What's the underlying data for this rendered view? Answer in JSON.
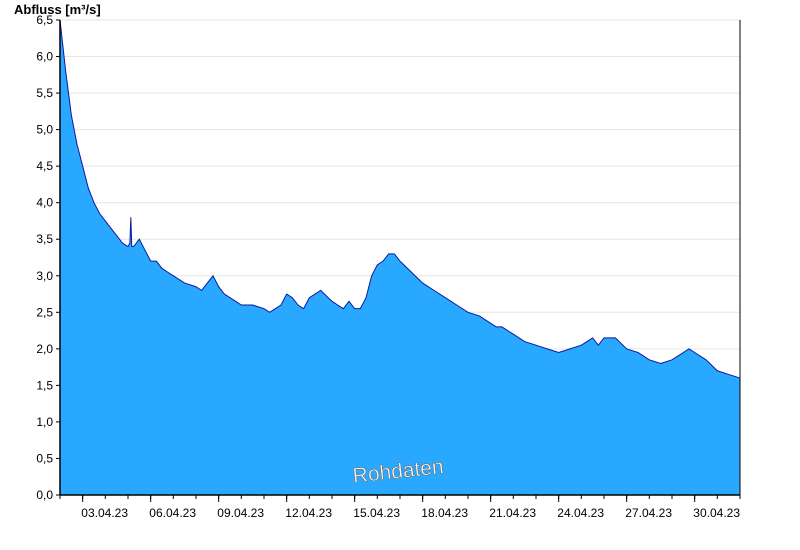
{
  "chart_data": {
    "type": "area",
    "title": "",
    "xlabel": "",
    "ylabel": "Abfluss [m³/s]",
    "watermark": "Rohdaten",
    "x_start": "2023-04-02",
    "x_end": "2023-05-02",
    "ylim": [
      0,
      6.5
    ],
    "yticks": [
      0,
      0.5,
      1.0,
      1.5,
      2.0,
      2.5,
      3.0,
      3.5,
      4.0,
      4.5,
      5.0,
      5.5,
      6.0,
      6.5
    ],
    "ytick_labels": [
      "0,0",
      "0,5",
      "1,0",
      "1,5",
      "2,0",
      "2,5",
      "3,0",
      "3,5",
      "4,0",
      "4,5",
      "5,0",
      "5,5",
      "6,0",
      "6,5"
    ],
    "xtick_dates": [
      "2023-04-03",
      "2023-04-06",
      "2023-04-09",
      "2023-04-12",
      "2023-04-15",
      "2023-04-18",
      "2023-04-21",
      "2023-04-24",
      "2023-04-27",
      "2023-04-30"
    ],
    "xtick_labels": [
      "03.04.23",
      "06.04.23",
      "09.04.23",
      "12.04.23",
      "15.04.23",
      "18.04.23",
      "21.04.23",
      "24.04.23",
      "27.04.23",
      "30.04.23"
    ],
    "grid": "horizontal",
    "fill_color": "#29a8ff",
    "line_color": "#0a1a9c",
    "series": [
      {
        "x": [
          "2023-04-02T00:00",
          "2023-04-02T06:00",
          "2023-04-02T12:00",
          "2023-04-02T18:00",
          "2023-04-03T00:00",
          "2023-04-03T06:00",
          "2023-04-03T12:00",
          "2023-04-03T18:00",
          "2023-04-04T00:00",
          "2023-04-04T06:00",
          "2023-04-04T12:00",
          "2023-04-04T18:00",
          "2023-04-05T00:00",
          "2023-04-05T02:00",
          "2023-04-05T03:00",
          "2023-04-05T04:00",
          "2023-04-05T06:00",
          "2023-04-05T12:00",
          "2023-04-05T18:00",
          "2023-04-06T00:00",
          "2023-04-06T06:00",
          "2023-04-06T12:00",
          "2023-04-06T18:00",
          "2023-04-07T00:00",
          "2023-04-07T12:00",
          "2023-04-08T00:00",
          "2023-04-08T06:00",
          "2023-04-08T12:00",
          "2023-04-08T18:00",
          "2023-04-09T00:00",
          "2023-04-09T06:00",
          "2023-04-09T12:00",
          "2023-04-09T18:00",
          "2023-04-10T00:00",
          "2023-04-10T12:00",
          "2023-04-11T00:00",
          "2023-04-11T06:00",
          "2023-04-11T12:00",
          "2023-04-11T18:00",
          "2023-04-12T00:00",
          "2023-04-12T06:00",
          "2023-04-12T12:00",
          "2023-04-12T18:00",
          "2023-04-13T00:00",
          "2023-04-13T12:00",
          "2023-04-14T00:00",
          "2023-04-14T06:00",
          "2023-04-14T12:00",
          "2023-04-14T18:00",
          "2023-04-15T00:00",
          "2023-04-15T06:00",
          "2023-04-15T12:00",
          "2023-04-15T18:00",
          "2023-04-16T00:00",
          "2023-04-16T06:00",
          "2023-04-16T12:00",
          "2023-04-16T18:00",
          "2023-04-17T00:00",
          "2023-04-17T12:00",
          "2023-04-18T00:00",
          "2023-04-18T12:00",
          "2023-04-19T00:00",
          "2023-04-19T12:00",
          "2023-04-20T00:00",
          "2023-04-20T12:00",
          "2023-04-21T00:00",
          "2023-04-21T06:00",
          "2023-04-21T12:00",
          "2023-04-22T00:00",
          "2023-04-22T12:00",
          "2023-04-23T00:00",
          "2023-04-23T12:00",
          "2023-04-24T00:00",
          "2023-04-24T12:00",
          "2023-04-25T00:00",
          "2023-04-25T06:00",
          "2023-04-25T12:00",
          "2023-04-25T18:00",
          "2023-04-26T00:00",
          "2023-04-26T12:00",
          "2023-04-27T00:00",
          "2023-04-27T12:00",
          "2023-04-28T00:00",
          "2023-04-28T12:00",
          "2023-04-29T00:00",
          "2023-04-29T06:00",
          "2023-04-29T12:00",
          "2023-04-29T18:00",
          "2023-04-30T00:00",
          "2023-04-30T12:00",
          "2023-05-01T00:00",
          "2023-05-01T12:00",
          "2023-05-02T00:00"
        ],
        "y": [
          6.5,
          5.8,
          5.2,
          4.8,
          4.5,
          4.2,
          4.0,
          3.85,
          3.75,
          3.65,
          3.55,
          3.45,
          3.4,
          3.45,
          3.8,
          3.4,
          3.4,
          3.5,
          3.35,
          3.2,
          3.2,
          3.1,
          3.05,
          3.0,
          2.9,
          2.85,
          2.8,
          2.9,
          3.0,
          2.85,
          2.75,
          2.7,
          2.65,
          2.6,
          2.6,
          2.55,
          2.5,
          2.55,
          2.6,
          2.75,
          2.7,
          2.6,
          2.55,
          2.7,
          2.8,
          2.65,
          2.6,
          2.55,
          2.65,
          2.55,
          2.55,
          2.7,
          3.0,
          3.15,
          3.2,
          3.3,
          3.3,
          3.2,
          3.05,
          2.9,
          2.8,
          2.7,
          2.6,
          2.5,
          2.45,
          2.35,
          2.3,
          2.3,
          2.2,
          2.1,
          2.05,
          2.0,
          1.95,
          2.0,
          2.05,
          2.1,
          2.15,
          2.05,
          2.15,
          2.15,
          2.0,
          1.95,
          1.85,
          1.8,
          1.85,
          1.9,
          1.95,
          2.0,
          1.95,
          1.85,
          1.7,
          1.65,
          1.6
        ]
      }
    ]
  }
}
